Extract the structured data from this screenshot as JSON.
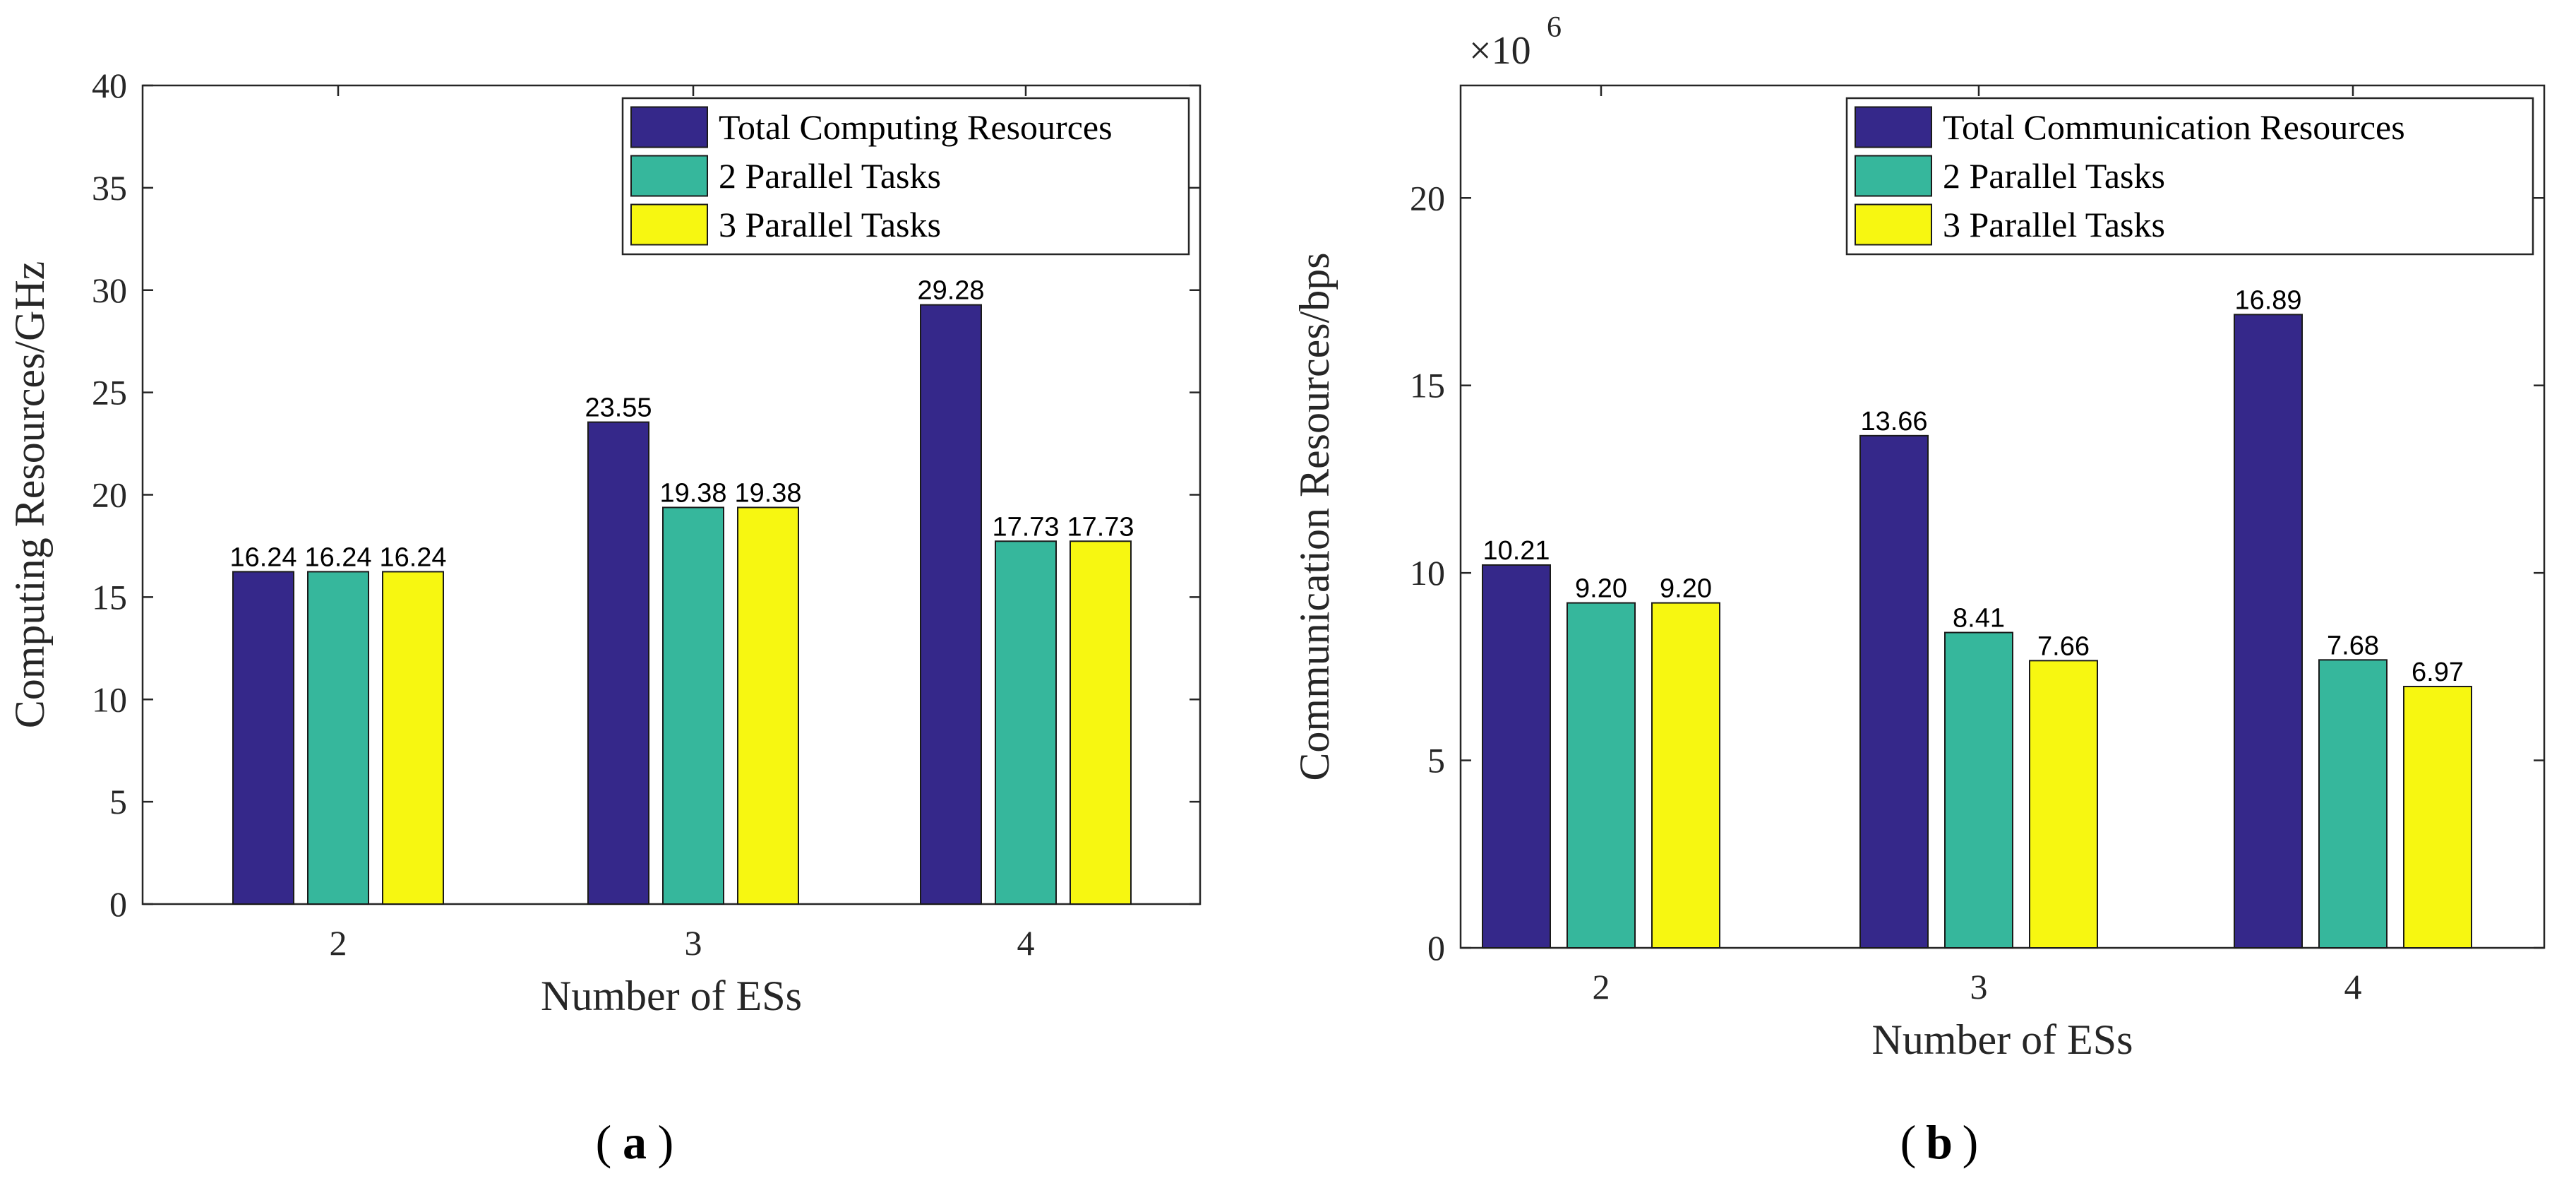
{
  "chart_data": [
    {
      "type": "bar",
      "panel_label": "(a)",
      "panel_letter": "a",
      "categories": [
        "2",
        "3",
        "4"
      ],
      "series": [
        {
          "name": "Total Computing Resources",
          "values": [
            16.24,
            23.55,
            29.28
          ],
          "labels": [
            "16.24",
            "23.55",
            "29.28"
          ],
          "color": "#35288A"
        },
        {
          "name": "2 Parallel Tasks",
          "values": [
            16.24,
            19.38,
            17.73
          ],
          "labels": [
            "16.24",
            "19.38",
            "17.73"
          ],
          "color": "#36B79C"
        },
        {
          "name": "3 Parallel Tasks",
          "values": [
            16.24,
            19.38,
            17.73
          ],
          "labels": [
            "16.24",
            "19.38",
            "17.73"
          ],
          "color": "#F7F711"
        }
      ],
      "xlabel": "Number of ESs",
      "ylabel": "Computing Resources/GHz",
      "ylim": [
        0,
        40
      ],
      "yticks": [
        "0",
        "5",
        "10",
        "15",
        "20",
        "25",
        "30",
        "35",
        "40"
      ],
      "scale_label": "",
      "legend": "top-right",
      "grid": false
    },
    {
      "type": "bar",
      "panel_label": "(b)",
      "panel_letter": "b",
      "categories": [
        "2",
        "3",
        "4"
      ],
      "series": [
        {
          "name": "Total Communication Resources",
          "values": [
            10.21,
            13.66,
            16.89
          ],
          "labels": [
            "10.21",
            "13.66",
            "16.89"
          ],
          "color": "#35288A"
        },
        {
          "name": "2 Parallel Tasks",
          "values": [
            9.2,
            8.41,
            7.68
          ],
          "labels": [
            "9.20",
            "8.41",
            "7.68"
          ],
          "color": "#36B79C"
        },
        {
          "name": "3 Parallel Tasks",
          "values": [
            9.2,
            7.66,
            6.97
          ],
          "labels": [
            "9.20",
            "7.66",
            "6.97"
          ],
          "color": "#F7F711"
        }
      ],
      "xlabel": "Number of ESs",
      "ylabel": "Communication Resources/bps",
      "ylim": [
        0,
        23
      ],
      "yticks": [
        "0",
        "5",
        "10",
        "15",
        "20"
      ],
      "scale_label": "×10",
      "scale_exponent": "6",
      "legend": "top-right",
      "grid": false
    }
  ]
}
